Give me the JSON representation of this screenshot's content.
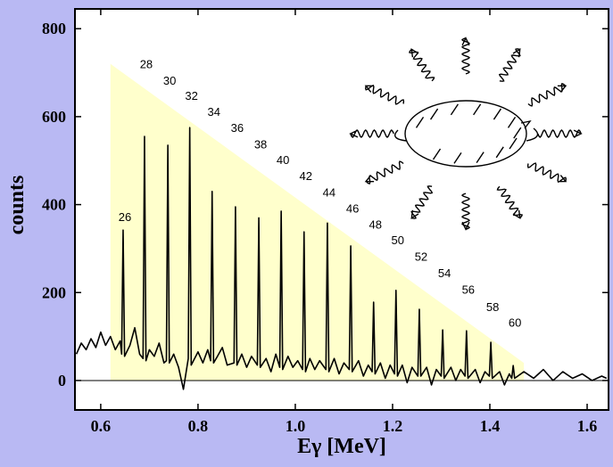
{
  "chart_data": {
    "type": "line",
    "xlabel": "Eγ [MeV]",
    "ylabel": "counts",
    "xlim": [
      0.547,
      1.644
    ],
    "ylim": [
      -67,
      845
    ],
    "xticks": [
      0.6,
      0.8,
      {
        "value": 1,
        "label": "1.0"
      },
      1.2,
      1.4,
      1.6
    ],
    "yticks": [
      0,
      200,
      400,
      600,
      800
    ],
    "hline": 0,
    "band_region": {
      "color": "#ffffcc",
      "x": [
        0.62,
        0.62,
        1.47,
        1.47
      ],
      "y": [
        0,
        720,
        40,
        0
      ]
    },
    "peak_labels": {
      "labels": [
        "26",
        "28",
        "30",
        "32",
        "34",
        "36",
        "38",
        "40",
        "42",
        "44",
        "46",
        "48",
        "50",
        "52",
        "54",
        "56",
        "58",
        "60"
      ],
      "x": [
        0.646,
        0.69,
        0.738,
        0.783,
        0.829,
        0.877,
        0.925,
        0.971,
        1.018,
        1.066,
        1.114,
        1.161,
        1.207,
        1.255,
        1.303,
        1.352,
        1.402,
        1.448
      ]
    },
    "x": [
      0.55,
      0.56,
      0.57,
      0.58,
      0.59,
      0.6,
      0.61,
      0.62,
      0.63,
      0.64,
      0.643,
      0.646,
      0.649,
      0.66,
      0.67,
      0.68,
      0.687,
      0.69,
      0.693,
      0.7,
      0.71,
      0.72,
      0.73,
      0.735,
      0.738,
      0.741,
      0.75,
      0.76,
      0.77,
      0.78,
      0.783,
      0.786,
      0.8,
      0.81,
      0.82,
      0.826,
      0.829,
      0.832,
      0.84,
      0.85,
      0.86,
      0.874,
      0.877,
      0.88,
      0.89,
      0.9,
      0.91,
      0.922,
      0.925,
      0.928,
      0.94,
      0.95,
      0.96,
      0.968,
      0.971,
      0.974,
      0.985,
      0.995,
      1.005,
      1.015,
      1.018,
      1.021,
      1.03,
      1.04,
      1.05,
      1.063,
      1.066,
      1.069,
      1.08,
      1.09,
      1.1,
      1.111,
      1.114,
      1.117,
      1.13,
      1.14,
      1.15,
      1.158,
      1.161,
      1.164,
      1.175,
      1.185,
      1.195,
      1.204,
      1.207,
      1.21,
      1.22,
      1.23,
      1.24,
      1.252,
      1.255,
      1.258,
      1.27,
      1.28,
      1.29,
      1.3,
      1.303,
      1.306,
      1.32,
      1.33,
      1.34,
      1.349,
      1.352,
      1.355,
      1.37,
      1.38,
      1.39,
      1.399,
      1.402,
      1.405,
      1.42,
      1.43,
      1.44,
      1.445,
      1.448,
      1.451,
      1.47,
      1.49,
      1.51,
      1.53,
      1.55,
      1.57,
      1.59,
      1.61,
      1.63,
      1.64
    ],
    "series": [
      {
        "color": "#000000",
        "values": [
          60,
          85,
          70,
          95,
          75,
          110,
          80,
          100,
          70,
          90,
          60,
          342,
          55,
          80,
          120,
          60,
          50,
          555,
          45,
          70,
          55,
          85,
          40,
          45,
          535,
          40,
          60,
          30,
          -20,
          50,
          575,
          35,
          65,
          40,
          70,
          45,
          430,
          40,
          55,
          75,
          35,
          40,
          395,
          35,
          60,
          30,
          55,
          35,
          370,
          30,
          50,
          20,
          60,
          30,
          385,
          25,
          55,
          30,
          45,
          25,
          338,
          20,
          50,
          25,
          45,
          25,
          358,
          20,
          50,
          15,
          40,
          25,
          306,
          20,
          45,
          10,
          35,
          20,
          178,
          15,
          40,
          5,
          35,
          15,
          205,
          10,
          35,
          -5,
          30,
          10,
          162,
          10,
          30,
          -10,
          25,
          10,
          115,
          5,
          30,
          0,
          25,
          10,
          113,
          5,
          25,
          -5,
          20,
          10,
          87,
          5,
          20,
          -10,
          15,
          5,
          34,
          5,
          20,
          5,
          25,
          0,
          20,
          5,
          15,
          0,
          10,
          5
        ]
      }
    ]
  }
}
